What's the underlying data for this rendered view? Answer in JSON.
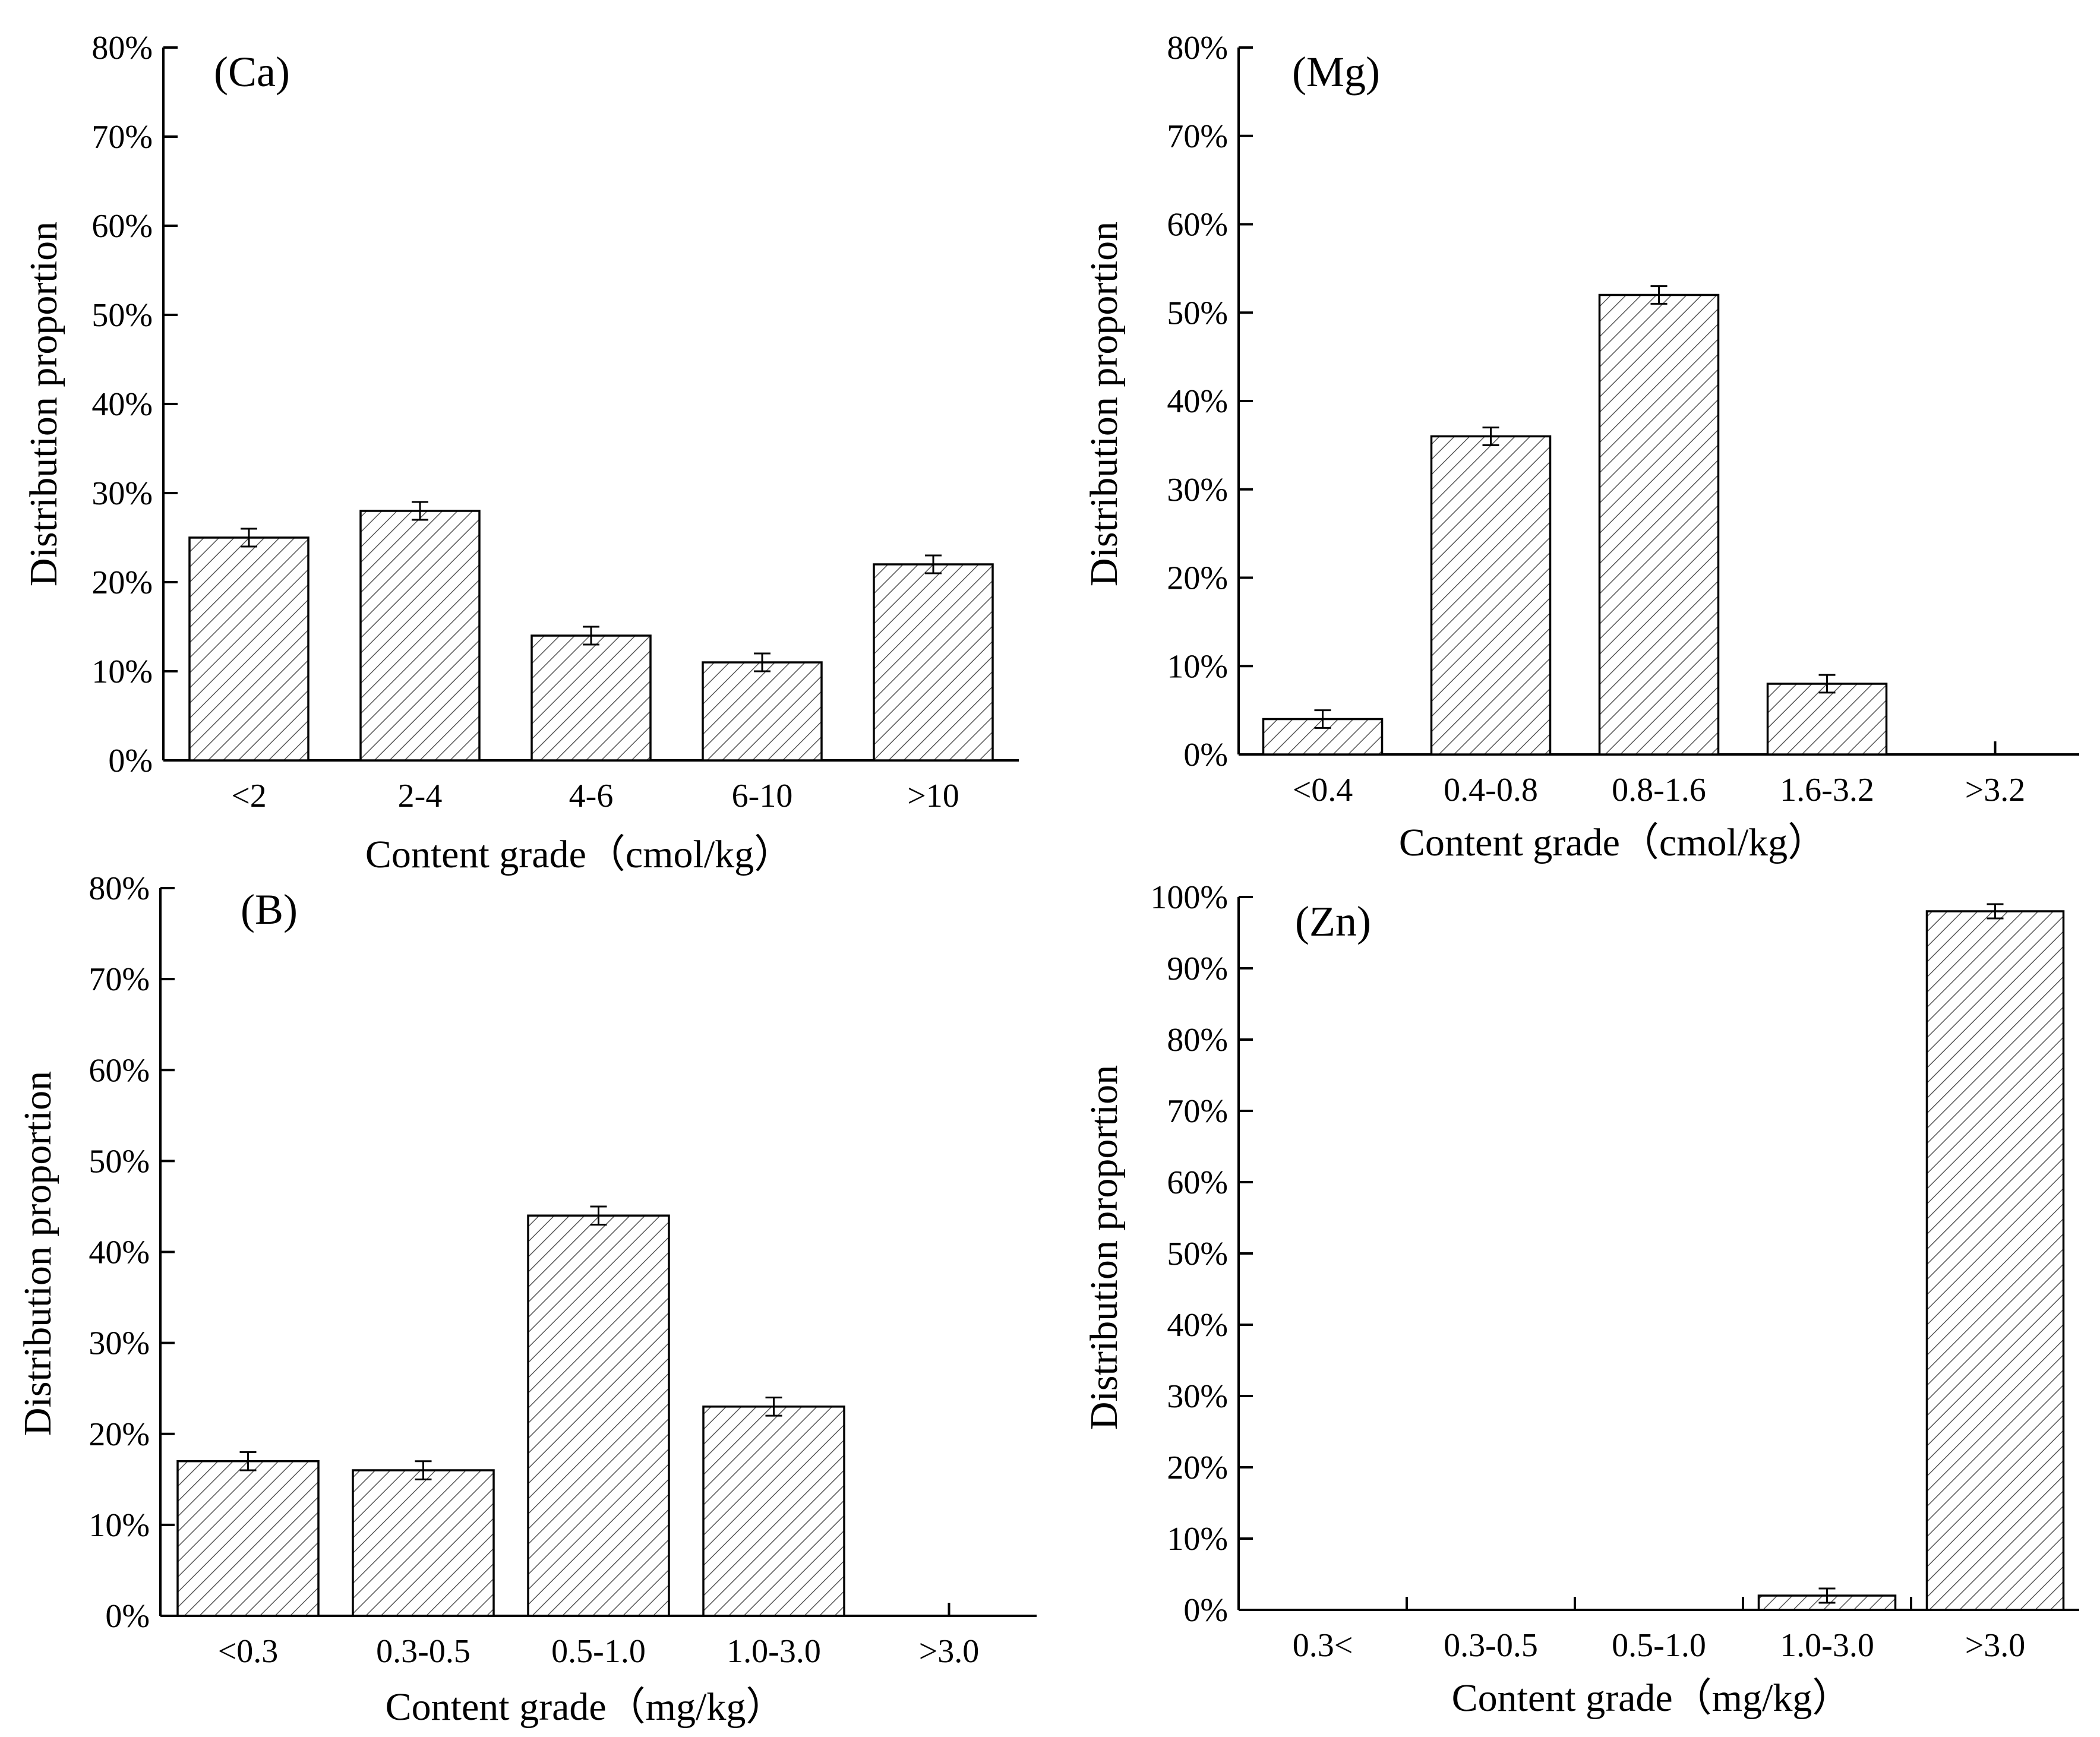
{
  "chart_data": [
    {
      "id": "ca",
      "type": "bar",
      "panel_label": "(Ca)",
      "categories": [
        "<2",
        "2-4",
        "4-6",
        "6-10",
        ">10"
      ],
      "values": [
        25,
        28,
        14,
        11,
        22
      ],
      "errors": [
        1,
        1,
        1,
        1,
        1
      ],
      "ylim": [
        0,
        80
      ],
      "yticks": [
        0,
        10,
        20,
        30,
        40,
        50,
        60,
        70,
        80
      ],
      "ytick_labels": [
        "0%",
        "10%",
        "20%",
        "30%",
        "40%",
        "50%",
        "60%",
        "70%",
        "80%"
      ],
      "xlabel": "Content grade（cmol/kg）",
      "ylabel": "Distribution proportion",
      "pattern": "diagonal hatch"
    },
    {
      "id": "mg",
      "type": "bar",
      "panel_label": "(Mg)",
      "categories": [
        "<0.4",
        "0.4-0.8",
        "0.8-1.6",
        "1.6-3.2",
        ">3.2"
      ],
      "values": [
        4,
        36,
        52,
        8,
        0
      ],
      "errors": [
        1,
        1,
        1,
        1,
        0
      ],
      "ylim": [
        0,
        80
      ],
      "yticks": [
        0,
        10,
        20,
        30,
        40,
        50,
        60,
        70,
        80
      ],
      "ytick_labels": [
        "0%",
        "10%",
        "20%",
        "30%",
        "40%",
        "50%",
        "60%",
        "70%",
        "80%"
      ],
      "xlabel": "Content grade（cmol/kg）",
      "ylabel": "Distribution proportion",
      "pattern": "diagonal hatch"
    },
    {
      "id": "b",
      "type": "bar",
      "panel_label": "(B)",
      "categories": [
        "<0.3",
        "0.3-0.5",
        "0.5-1.0",
        "1.0-3.0",
        ">3.0"
      ],
      "values": [
        17,
        16,
        44,
        23,
        0
      ],
      "errors": [
        1,
        1,
        1,
        1,
        0
      ],
      "ylim": [
        0,
        80
      ],
      "yticks": [
        0,
        10,
        20,
        30,
        40,
        50,
        60,
        70,
        80
      ],
      "ytick_labels": [
        "0%",
        "10%",
        "20%",
        "30%",
        "40%",
        "50%",
        "60%",
        "70%",
        "80%"
      ],
      "xlabel": "Content grade（mg/kg）",
      "ylabel": "Distribution proportion",
      "pattern": "diagonal hatch"
    },
    {
      "id": "zn",
      "type": "bar",
      "panel_label": "(Zn)",
      "categories": [
        "0.3<",
        "0.3-0.5",
        "0.5-1.0",
        "1.0-3.0",
        ">3.0"
      ],
      "values": [
        0,
        0,
        0,
        2,
        98
      ],
      "errors": [
        0,
        0,
        0,
        1,
        1
      ],
      "ylim": [
        0,
        100
      ],
      "yticks": [
        0,
        10,
        20,
        30,
        40,
        50,
        60,
        70,
        80,
        90,
        100
      ],
      "ytick_labels": [
        "0%",
        "10%",
        "20%",
        "30%",
        "40%",
        "50%",
        "60%",
        "70%",
        "80%",
        "90%",
        "100%"
      ],
      "xlabel": "Content grade（mg/kg）",
      "ylabel": "Distribution proportion",
      "pattern": "diagonal hatch"
    }
  ]
}
